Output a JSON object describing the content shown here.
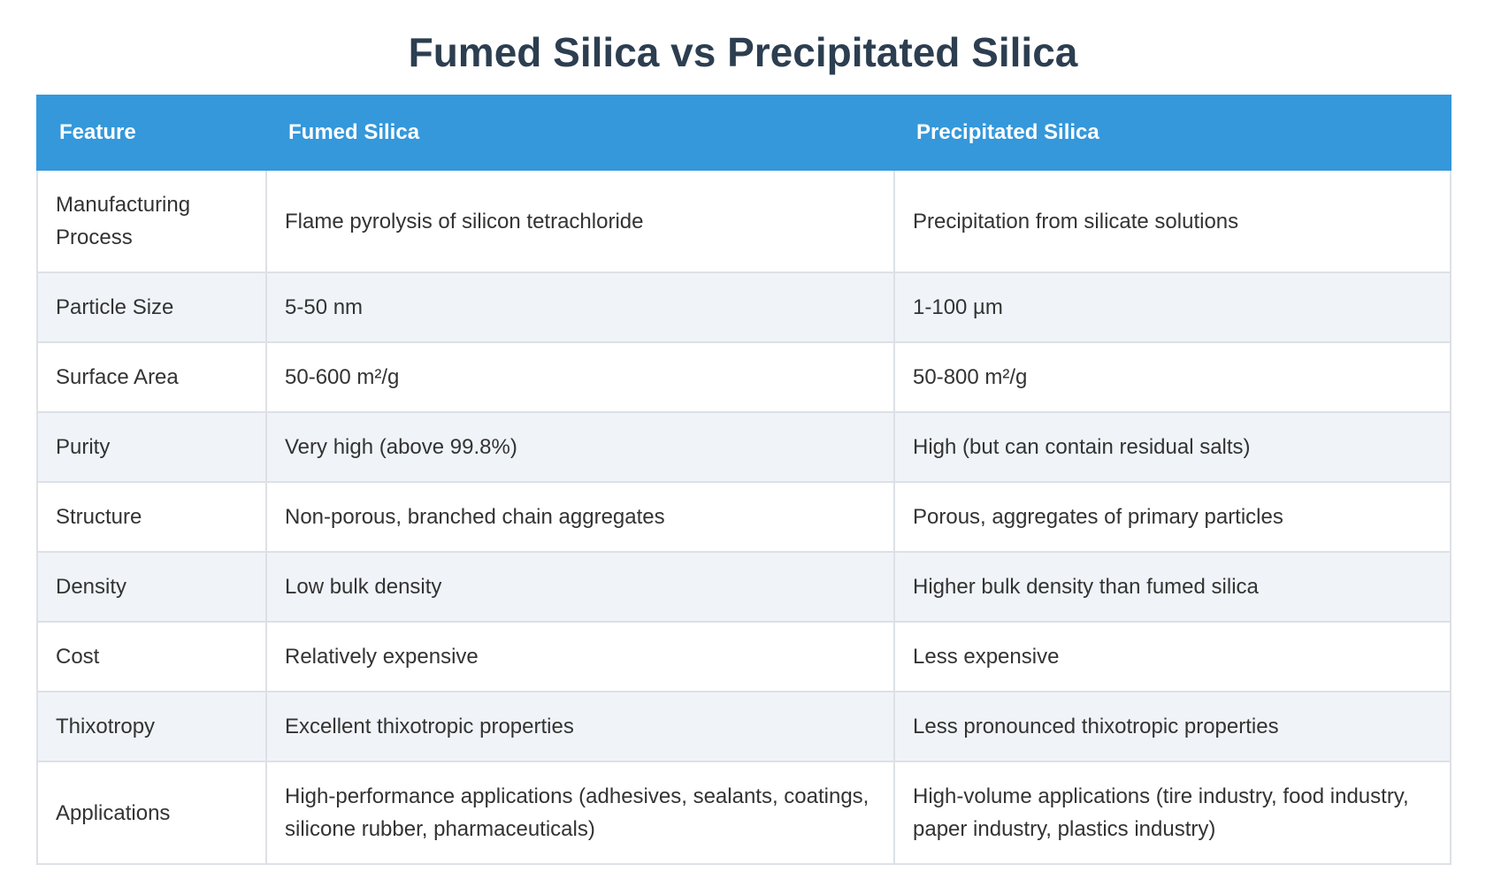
{
  "title": "Fumed Silica vs Precipitated Silica",
  "table": {
    "header": [
      "Feature",
      "Fumed Silica",
      "Precipitated Silica"
    ],
    "rows": [
      [
        "Manufacturing Process",
        "Flame pyrolysis of silicon tetrachloride",
        "Precipitation from silicate solutions"
      ],
      [
        "Particle Size",
        "5-50 nm",
        "1-100 µm"
      ],
      [
        "Surface Area",
        "50-600 m²/g",
        "50-800 m²/g"
      ],
      [
        "Purity",
        "Very high (above 99.8%)",
        "High (but can contain residual salts)"
      ],
      [
        "Structure",
        "Non-porous, branched chain aggregates",
        "Porous, aggregates of primary particles"
      ],
      [
        "Density",
        "Low bulk density",
        "Higher bulk density than fumed silica"
      ],
      [
        "Cost",
        "Relatively expensive",
        "Less expensive"
      ],
      [
        "Thixotropy",
        "Excellent thixotropic properties",
        "Less pronounced thixotropic properties"
      ],
      [
        "Applications",
        "High-performance applications (adhesives, sealants, coatings, silicone rubber, pharmaceuticals)",
        "High-volume applications (tire industry, food industry, paper industry, plastics industry)"
      ]
    ]
  }
}
